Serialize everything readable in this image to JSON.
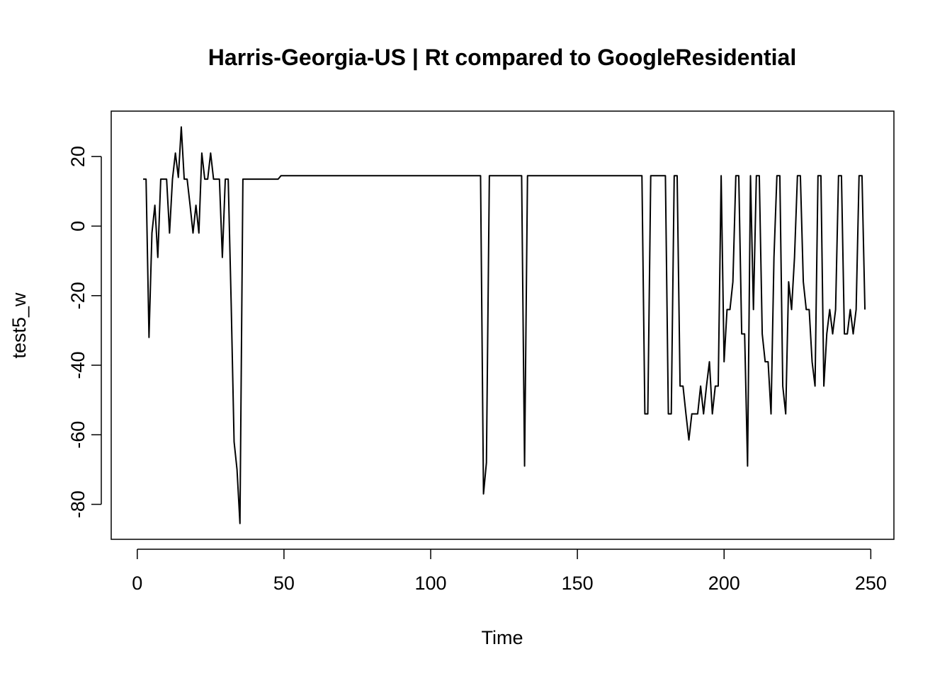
{
  "chart_data": {
    "type": "line",
    "title": "Harris-Georgia-US | Rt compared to GoogleResidential",
    "x_label": "Time",
    "y_label": "test5_w",
    "color": "#000000",
    "xlim": [
      -8.88,
      257.88
    ],
    "ylim": [
      -90.06,
      33.06
    ],
    "xticks": [
      0,
      50,
      100,
      150,
      200,
      250
    ],
    "yticks": [
      -80,
      -60,
      -40,
      -20,
      0,
      20
    ],
    "x": [
      2,
      3,
      4,
      5,
      6,
      7,
      8,
      9,
      10,
      11,
      12,
      13,
      14,
      15,
      16,
      17,
      18,
      19,
      20,
      21,
      22,
      23,
      24,
      25,
      26,
      27,
      28,
      29,
      30,
      31,
      32,
      33,
      34,
      35,
      36,
      37,
      38,
      39,
      40,
      41,
      42,
      43,
      44,
      45,
      46,
      47,
      48,
      49,
      50,
      51,
      52,
      53,
      54,
      55,
      56,
      57,
      58,
      59,
      60,
      61,
      62,
      63,
      64,
      65,
      66,
      67,
      68,
      69,
      70,
      71,
      72,
      73,
      74,
      75,
      76,
      77,
      78,
      79,
      80,
      81,
      82,
      83,
      84,
      85,
      86,
      87,
      88,
      89,
      90,
      91,
      92,
      93,
      94,
      95,
      96,
      97,
      98,
      99,
      100,
      101,
      102,
      103,
      104,
      105,
      106,
      107,
      108,
      109,
      110,
      111,
      112,
      113,
      114,
      115,
      116,
      117,
      118,
      119,
      120,
      121,
      122,
      123,
      124,
      125,
      126,
      127,
      128,
      129,
      130,
      131,
      132,
      133,
      134,
      135,
      136,
      137,
      138,
      139,
      140,
      141,
      142,
      143,
      144,
      145,
      146,
      147,
      148,
      149,
      150,
      151,
      152,
      153,
      154,
      155,
      156,
      157,
      158,
      159,
      160,
      161,
      162,
      163,
      164,
      165,
      166,
      167,
      168,
      169,
      170,
      171,
      172,
      173,
      174,
      175,
      176,
      177,
      178,
      179,
      180,
      181,
      182,
      183,
      184,
      185,
      186,
      187,
      188,
      189,
      190,
      191,
      192,
      193,
      194,
      195,
      196,
      197,
      198,
      199,
      200,
      201,
      202,
      203,
      204,
      205,
      206,
      207,
      208,
      209,
      210,
      211,
      212,
      213,
      214,
      215,
      216,
      217,
      218,
      219,
      220,
      221,
      222,
      223,
      224,
      225,
      226,
      227,
      228,
      229,
      230,
      231,
      232,
      233,
      234,
      235,
      236,
      237,
      238,
      239,
      240,
      241,
      242,
      243,
      244,
      245,
      246,
      247,
      248
    ],
    "values": [
      13.5,
      13.5,
      -32,
      -2,
      6,
      -9,
      13.5,
      13.5,
      13.5,
      -2,
      13.5,
      21,
      14,
      28.5,
      13.5,
      13.5,
      6,
      -2,
      6,
      -2,
      21,
      13.5,
      13.5,
      21,
      13.5,
      13.5,
      13.5,
      -9,
      13.5,
      13.5,
      -22,
      -62,
      -70,
      -85.5,
      13.5,
      13.5,
      13.5,
      13.5,
      13.5,
      13.5,
      13.5,
      13.5,
      13.5,
      13.5,
      13.5,
      13.5,
      13.5,
      14.5,
      14.5,
      14.5,
      14.5,
      14.5,
      14.5,
      14.5,
      14.5,
      14.5,
      14.5,
      14.5,
      14.5,
      14.5,
      14.5,
      14.5,
      14.5,
      14.5,
      14.5,
      14.5,
      14.5,
      14.5,
      14.5,
      14.5,
      14.5,
      14.5,
      14.5,
      14.5,
      14.5,
      14.5,
      14.5,
      14.5,
      14.5,
      14.5,
      14.5,
      14.5,
      14.5,
      14.5,
      14.5,
      14.5,
      14.5,
      14.5,
      14.5,
      14.5,
      14.5,
      14.5,
      14.5,
      14.5,
      14.5,
      14.5,
      14.5,
      14.5,
      14.5,
      14.5,
      14.5,
      14.5,
      14.5,
      14.5,
      14.5,
      14.5,
      14.5,
      14.5,
      14.5,
      14.5,
      14.5,
      14.5,
      14.5,
      14.5,
      14.5,
      14.5,
      -77,
      -68,
      14.5,
      14.5,
      14.5,
      14.5,
      14.5,
      14.5,
      14.5,
      14.5,
      14.5,
      14.5,
      14.5,
      14.5,
      -69,
      14.5,
      14.5,
      14.5,
      14.5,
      14.5,
      14.5,
      14.5,
      14.5,
      14.5,
      14.5,
      14.5,
      14.5,
      14.5,
      14.5,
      14.5,
      14.5,
      14.5,
      14.5,
      14.5,
      14.5,
      14.5,
      14.5,
      14.5,
      14.5,
      14.5,
      14.5,
      14.5,
      14.5,
      14.5,
      14.5,
      14.5,
      14.5,
      14.5,
      14.5,
      14.5,
      14.5,
      14.5,
      14.5,
      14.5,
      14.5,
      -54,
      -54,
      14.5,
      14.5,
      14.5,
      14.5,
      14.5,
      14.5,
      -54,
      -54,
      14.5,
      14.5,
      -46,
      -46,
      -54,
      -61.5,
      -54,
      -54,
      -54,
      -46,
      -54,
      -46,
      -39,
      -54,
      -46,
      -46,
      14.5,
      -39,
      -24,
      -24,
      -16,
      14.5,
      14.5,
      -31,
      -31,
      -69,
      14.5,
      -24,
      14.5,
      14.5,
      -31,
      -39,
      -39,
      -54,
      -9,
      14.5,
      14.5,
      -46,
      -54,
      -16,
      -24,
      -9,
      14.5,
      14.5,
      -16,
      -24,
      -24,
      -39,
      -46,
      14.5,
      14.5,
      -46,
      -31,
      -24,
      -31,
      -24,
      14.5,
      14.5,
      -31,
      -31,
      -24,
      -31,
      -24,
      14.5,
      14.5,
      -24
    ]
  }
}
